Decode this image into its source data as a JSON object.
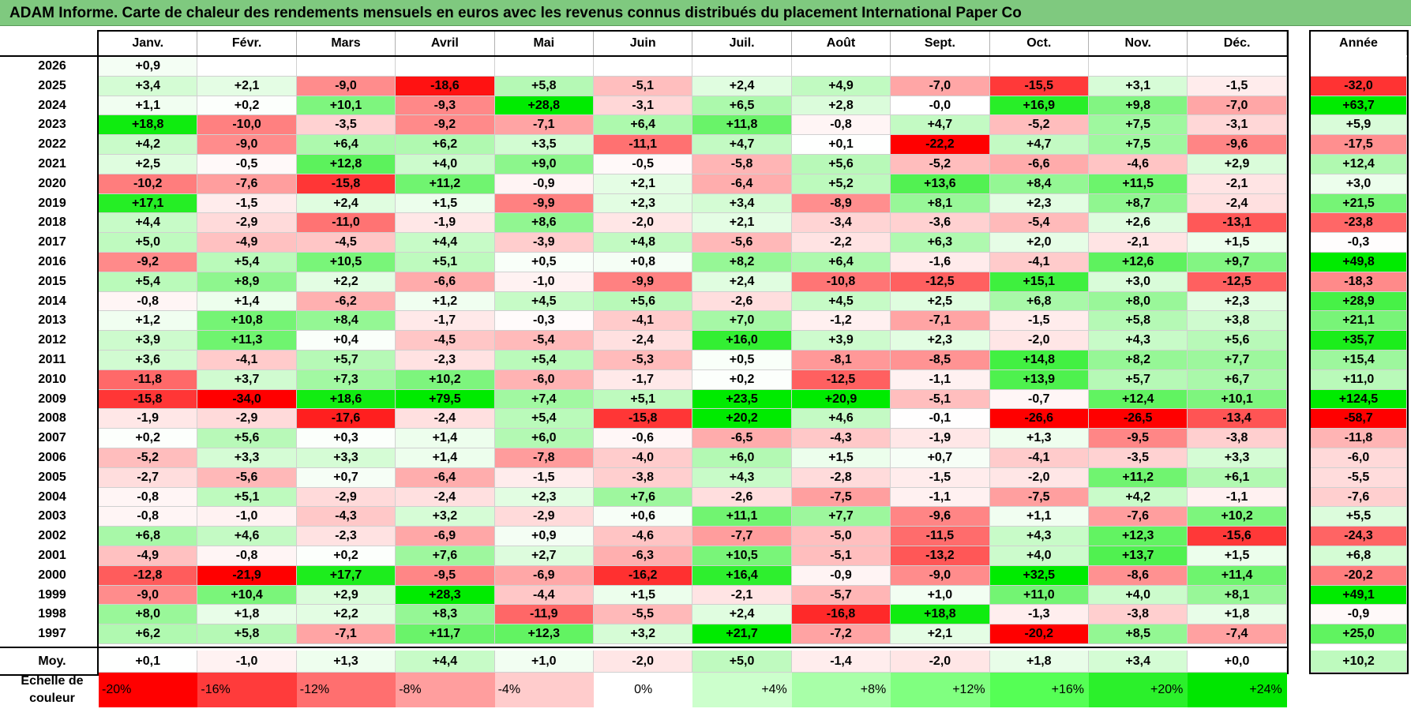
{
  "title": "ADAM Informe. Carte de chaleur des rendements mensuels en euros avec les revenus connus distribués du placement International Paper Co",
  "chart_data": {
    "type": "heatmap",
    "title": "ADAM Informe. Carte de chaleur des rendements mensuels en euros avec les revenus connus distribués du placement International Paper Co",
    "months": [
      "Janv.",
      "Févr.",
      "Mars",
      "Avril",
      "Mai",
      "Juin",
      "Juil.",
      "Août",
      "Sept.",
      "Oct.",
      "Nov.",
      "Déc."
    ],
    "year_header": "Année",
    "rows": [
      {
        "year": "2026",
        "months": [
          "+0,9",
          "",
          "",
          "",
          "",
          "",
          "",
          "",
          "",
          "",
          "",
          ""
        ],
        "annual": ""
      },
      {
        "year": "2025",
        "months": [
          "+3,4",
          "+2,1",
          "-9,0",
          "-18,6",
          "+5,8",
          "-5,1",
          "+2,4",
          "+4,9",
          "-7,0",
          "-15,5",
          "+3,1",
          "-1,5"
        ],
        "annual": "-32,0"
      },
      {
        "year": "2024",
        "months": [
          "+1,1",
          "+0,2",
          "+10,1",
          "-9,3",
          "+28,8",
          "-3,1",
          "+6,5",
          "+2,8",
          "-0,0",
          "+16,9",
          "+9,8",
          "-7,0"
        ],
        "annual": "+63,7"
      },
      {
        "year": "2023",
        "months": [
          "+18,8",
          "-10,0",
          "-3,5",
          "-9,2",
          "-7,1",
          "+6,4",
          "+11,8",
          "-0,8",
          "+4,7",
          "-5,2",
          "+7,5",
          "-3,1"
        ],
        "annual": "+5,9"
      },
      {
        "year": "2022",
        "months": [
          "+4,2",
          "-9,0",
          "+6,4",
          "+6,2",
          "+3,5",
          "-11,1",
          "+4,7",
          "+0,1",
          "-22,2",
          "+4,7",
          "+7,5",
          "-9,6"
        ],
        "annual": "-17,5"
      },
      {
        "year": "2021",
        "months": [
          "+2,5",
          "-0,5",
          "+12,8",
          "+4,0",
          "+9,0",
          "-0,5",
          "-5,8",
          "+5,6",
          "-5,2",
          "-6,6",
          "-4,6",
          "+2,9"
        ],
        "annual": "+12,4"
      },
      {
        "year": "2020",
        "months": [
          "-10,2",
          "-7,6",
          "-15,8",
          "+11,2",
          "-0,9",
          "+2,1",
          "-6,4",
          "+5,2",
          "+13,6",
          "+8,4",
          "+11,5",
          "-2,1"
        ],
        "annual": "+3,0"
      },
      {
        "year": "2019",
        "months": [
          "+17,1",
          "-1,5",
          "+2,4",
          "+1,5",
          "-9,9",
          "+2,3",
          "+3,4",
          "-8,9",
          "+8,1",
          "+2,3",
          "+8,7",
          "-2,4"
        ],
        "annual": "+21,5"
      },
      {
        "year": "2018",
        "months": [
          "+4,4",
          "-2,9",
          "-11,0",
          "-1,9",
          "+8,6",
          "-2,0",
          "+2,1",
          "-3,4",
          "-3,6",
          "-5,4",
          "+2,6",
          "-13,1"
        ],
        "annual": "-23,8"
      },
      {
        "year": "2017",
        "months": [
          "+5,0",
          "-4,9",
          "-4,5",
          "+4,4",
          "-3,9",
          "+4,8",
          "-5,6",
          "-2,2",
          "+6,3",
          "+2,0",
          "-2,1",
          "+1,5"
        ],
        "annual": "-0,3"
      },
      {
        "year": "2016",
        "months": [
          "-9,2",
          "+5,4",
          "+10,5",
          "+5,1",
          "+0,5",
          "+0,8",
          "+8,2",
          "+6,4",
          "-1,6",
          "-4,1",
          "+12,6",
          "+9,7"
        ],
        "annual": "+49,8"
      },
      {
        "year": "2015",
        "months": [
          "+5,4",
          "+8,9",
          "+2,2",
          "-6,6",
          "-1,0",
          "-9,9",
          "+2,4",
          "-10,8",
          "-12,5",
          "+15,1",
          "+3,0",
          "-12,5"
        ],
        "annual": "-18,3"
      },
      {
        "year": "2014",
        "months": [
          "-0,8",
          "+1,4",
          "-6,2",
          "+1,2",
          "+4,5",
          "+5,6",
          "-2,6",
          "+4,5",
          "+2,5",
          "+6,8",
          "+8,0",
          "+2,3"
        ],
        "annual": "+28,9"
      },
      {
        "year": "2013",
        "months": [
          "+1,2",
          "+10,8",
          "+8,4",
          "-1,7",
          "-0,3",
          "-4,1",
          "+7,0",
          "-1,2",
          "-7,1",
          "-1,5",
          "+5,8",
          "+3,8"
        ],
        "annual": "+21,1"
      },
      {
        "year": "2012",
        "months": [
          "+3,9",
          "+11,3",
          "+0,4",
          "-4,5",
          "-5,4",
          "-2,4",
          "+16,0",
          "+3,9",
          "+2,3",
          "-2,0",
          "+4,3",
          "+5,6"
        ],
        "annual": "+35,7"
      },
      {
        "year": "2011",
        "months": [
          "+3,6",
          "-4,1",
          "+5,7",
          "-2,3",
          "+5,4",
          "-5,3",
          "+0,5",
          "-8,1",
          "-8,5",
          "+14,8",
          "+8,2",
          "+7,7"
        ],
        "annual": "+15,4"
      },
      {
        "year": "2010",
        "months": [
          "-11,8",
          "+3,7",
          "+7,3",
          "+10,2",
          "-6,0",
          "-1,7",
          "+0,2",
          "-12,5",
          "-1,1",
          "+13,9",
          "+5,7",
          "+6,7"
        ],
        "annual": "+11,0"
      },
      {
        "year": "2009",
        "months": [
          "-15,8",
          "-34,0",
          "+18,6",
          "+79,5",
          "+7,4",
          "+5,1",
          "+23,5",
          "+20,9",
          "-5,1",
          "-0,7",
          "+12,4",
          "+10,1"
        ],
        "annual": "+124,5"
      },
      {
        "year": "2008",
        "months": [
          "-1,9",
          "-2,9",
          "-17,6",
          "-2,4",
          "+5,4",
          "-15,8",
          "+20,2",
          "+4,6",
          "-0,1",
          "-26,6",
          "-26,5",
          "-13,4"
        ],
        "annual": "-58,7"
      },
      {
        "year": "2007",
        "months": [
          "+0,2",
          "+5,6",
          "+0,3",
          "+1,4",
          "+6,0",
          "-0,6",
          "-6,5",
          "-4,3",
          "-1,9",
          "+1,3",
          "-9,5",
          "-3,8"
        ],
        "annual": "-11,8"
      },
      {
        "year": "2006",
        "months": [
          "-5,2",
          "+3,3",
          "+3,3",
          "+1,4",
          "-7,8",
          "-4,0",
          "+6,0",
          "+1,5",
          "+0,7",
          "-4,1",
          "-3,5",
          "+3,3"
        ],
        "annual": "-6,0"
      },
      {
        "year": "2005",
        "months": [
          "-2,7",
          "-5,6",
          "+0,7",
          "-6,4",
          "-1,5",
          "-3,8",
          "+4,3",
          "-2,8",
          "-1,5",
          "-2,0",
          "+11,2",
          "+6,1"
        ],
        "annual": "-5,5"
      },
      {
        "year": "2004",
        "months": [
          "-0,8",
          "+5,1",
          "-2,9",
          "-2,4",
          "+2,3",
          "+7,6",
          "-2,6",
          "-7,5",
          "-1,1",
          "-7,5",
          "+4,2",
          "-1,1"
        ],
        "annual": "-7,6"
      },
      {
        "year": "2003",
        "months": [
          "-0,8",
          "-1,0",
          "-4,3",
          "+3,2",
          "-2,9",
          "+0,6",
          "+11,1",
          "+7,7",
          "-9,6",
          "+1,1",
          "-7,6",
          "+10,2"
        ],
        "annual": "+5,5"
      },
      {
        "year": "2002",
        "months": [
          "+6,8",
          "+4,6",
          "-2,3",
          "-6,9",
          "+0,9",
          "-4,6",
          "-7,7",
          "-5,0",
          "-11,5",
          "+4,3",
          "+12,3",
          "-15,6"
        ],
        "annual": "-24,3"
      },
      {
        "year": "2001",
        "months": [
          "-4,9",
          "-0,8",
          "+0,2",
          "+7,6",
          "+2,7",
          "-6,3",
          "+10,5",
          "-5,1",
          "-13,2",
          "+4,0",
          "+13,7",
          "+1,5"
        ],
        "annual": "+6,8"
      },
      {
        "year": "2000",
        "months": [
          "-12,8",
          "-21,9",
          "+17,7",
          "-9,5",
          "-6,9",
          "-16,2",
          "+16,4",
          "-0,9",
          "-9,0",
          "+32,5",
          "-8,6",
          "+11,4"
        ],
        "annual": "-20,2"
      },
      {
        "year": "1999",
        "months": [
          "-9,0",
          "+10,4",
          "+2,9",
          "+28,3",
          "-4,4",
          "+1,5",
          "-2,1",
          "-5,7",
          "+1,0",
          "+11,0",
          "+4,0",
          "+8,1"
        ],
        "annual": "+49,1"
      },
      {
        "year": "1998",
        "months": [
          "+8,0",
          "+1,8",
          "+2,2",
          "+8,3",
          "-11,9",
          "-5,5",
          "+2,4",
          "-16,8",
          "+18,8",
          "-1,3",
          "-3,8",
          "+1,8"
        ],
        "annual": "-0,9"
      },
      {
        "year": "1997",
        "months": [
          "+6,2",
          "+5,8",
          "-7,1",
          "+11,7",
          "+12,3",
          "+3,2",
          "+21,7",
          "-7,2",
          "+2,1",
          "-20,2",
          "+8,5",
          "-7,4"
        ],
        "annual": "+25,0"
      }
    ],
    "average": {
      "label": "Moy.",
      "months": [
        "+0,1",
        "-1,0",
        "+1,3",
        "+4,4",
        "+1,0",
        "-2,0",
        "+5,0",
        "-1,4",
        "-2,0",
        "+1,8",
        "+3,4",
        "+0,0"
      ],
      "annual": "+10,2"
    },
    "legend": {
      "label": "Echelle de couleur",
      "steps": [
        {
          "text": "-20%",
          "value": -20,
          "color": "#ff0000"
        },
        {
          "text": "-16%",
          "value": -16,
          "color": "#ff3b3b"
        },
        {
          "text": "-12%",
          "value": -12,
          "color": "#ff6f6f"
        },
        {
          "text": "-8%",
          "value": -8,
          "color": "#ff9e9e"
        },
        {
          "text": "-4%",
          "value": -4,
          "color": "#ffcccc"
        },
        {
          "text": "0%",
          "value": 0,
          "color": "#ffffff"
        },
        {
          "text": "+4%",
          "value": 4,
          "color": "#ccffcc"
        },
        {
          "text": "+8%",
          "value": 8,
          "color": "#a8ffa8"
        },
        {
          "text": "+12%",
          "value": 12,
          "color": "#80ff80"
        },
        {
          "text": "+16%",
          "value": 16,
          "color": "#55ff55"
        },
        {
          "text": "+20%",
          "value": 20,
          "color": "#2bf02b"
        },
        {
          "text": "+24%",
          "value": 24,
          "color": "#00e600"
        }
      ]
    },
    "colors": {
      "negative": "#ff0000",
      "positive": "#00e600",
      "neutral": "#ffffff",
      "title_bar": "#7fc97f"
    }
  }
}
